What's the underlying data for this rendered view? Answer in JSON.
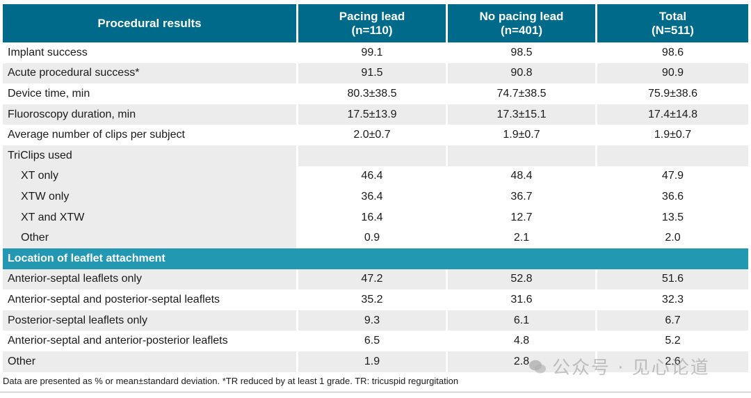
{
  "header": {
    "col0": "Procedural results",
    "col1_line1": "Pacing lead",
    "col1_line2": "(n=110)",
    "col2_line1": "No pacing lead",
    "col2_line2": "(n=401)",
    "col3_line1": "Total",
    "col3_line2": "(N=511)"
  },
  "rows": [
    {
      "label": "Implant success",
      "pacing": "99.1",
      "no_pacing": "98.5",
      "total": "98.6"
    },
    {
      "label": "Acute procedural success*",
      "pacing": "91.5",
      "no_pacing": "90.8",
      "total": "90.9"
    },
    {
      "label": "Device time, min",
      "pacing": "80.3±38.5",
      "no_pacing": "74.7±38.5",
      "total": "75.9±38.6"
    },
    {
      "label": "Fluoroscopy duration, min",
      "pacing": "17.5±13.9",
      "no_pacing": "17.3±15.1",
      "total": "17.4±14.8"
    },
    {
      "label": "Average number of clips per subject",
      "pacing": "2.0±0.7",
      "no_pacing": "1.9±0.7",
      "total": "1.9±0.7"
    },
    {
      "label": "TriClips used"
    },
    {
      "label": "XT only",
      "pacing": "46.4",
      "no_pacing": "48.4",
      "total": "47.9"
    },
    {
      "label": "XTW only",
      "pacing": "36.4",
      "no_pacing": "36.7",
      "total": "36.6"
    },
    {
      "label": "XT and XTW",
      "pacing": "16.4",
      "no_pacing": "12.7",
      "total": "13.5"
    },
    {
      "label": "Other",
      "pacing": "0.9",
      "no_pacing": "2.1",
      "total": "2.0"
    }
  ],
  "section2": {
    "title": "Location of leaflet attachment",
    "rows": [
      {
        "label": "Anterior-septal leaflets only",
        "pacing": "47.2",
        "no_pacing": "52.8",
        "total": "51.6"
      },
      {
        "label": "Anterior-septal and posterior-septal leaflets",
        "pacing": "35.2",
        "no_pacing": "31.6",
        "total": "32.3"
      },
      {
        "label": "Posterior-septal leaflets only",
        "pacing": "9.3",
        "no_pacing": "6.1",
        "total": "6.7"
      },
      {
        "label": "Anterior-septal and anterior-posterior leaflets",
        "pacing": "6.5",
        "no_pacing": "4.8",
        "total": "5.2"
      },
      {
        "label": "Other",
        "pacing": "1.9",
        "no_pacing": "2.8",
        "total": "2.6"
      }
    ]
  },
  "footnote": "Data are presented as % or mean±standard deviation. *TR reduced by at least 1 grade. TR: tricuspid regurgitation",
  "watermark": "公众号 · 见心论道",
  "colors": {
    "header": "#006a8a",
    "subheader": "#2398b2",
    "shade": "#ececec"
  }
}
